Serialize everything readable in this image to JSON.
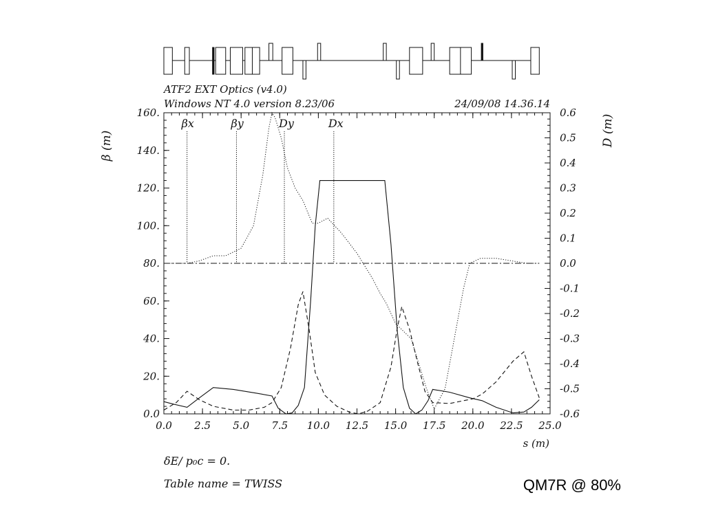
{
  "header": {
    "line1": "ATF2 EXT Optics (v4.0)",
    "line2": "Windows NT 4.0 version 8.23/06",
    "timestamp": "24/09/08  14.36.14"
  },
  "footer": {
    "delta_label": "δE/ p₀c  =  0.",
    "table_label": "Table name = TWISS"
  },
  "annotation": "QM7R @ 80%",
  "chart_data": {
    "type": "line",
    "xlabel": "s (m)",
    "ylabel": "β  (m)",
    "y2label": "D  (m)",
    "xlim": [
      0,
      25
    ],
    "ylim": [
      0,
      160
    ],
    "y2lim": [
      -0.6,
      0.6
    ],
    "x_ticks": [
      "0.0",
      "2.5",
      "5.0",
      "7.5",
      "10.0",
      "12.5",
      "15.0",
      "17.5",
      "20.0",
      "22.5",
      "25.0"
    ],
    "y_ticks": [
      "0.0",
      "20.",
      "40.",
      "60.",
      "80.",
      "100.",
      "120.",
      "140.",
      "160."
    ],
    "y2_ticks": [
      "-0.6",
      "-0.5",
      "-0.4",
      "-0.3",
      "-0.2",
      "-0.1",
      "0.0",
      "0.1",
      "0.2",
      "0.3",
      "0.4",
      "0.5",
      "0.6"
    ],
    "legend": [
      {
        "label": "βx",
        "x": 1.5
      },
      {
        "label": "βy",
        "x": 4.7
      },
      {
        "label": "Dy",
        "x": 7.8
      },
      {
        "label": "Dx",
        "x": 11.0
      }
    ],
    "series": [
      {
        "name": "βx",
        "axis": "left",
        "style": "solid",
        "x": [
          0.0,
          0.7,
          1.5,
          2.3,
          3.2,
          4.5,
          6.0,
          7.0,
          7.4,
          7.9,
          8.3,
          8.7,
          9.1,
          9.5,
          9.8,
          10.1,
          11.0,
          12.5,
          14.0,
          14.3,
          14.7,
          15.1,
          15.5,
          15.9,
          16.3,
          16.7,
          17.1,
          17.4,
          18.5,
          19.8,
          20.6,
          21.5,
          22.6,
          23.3,
          23.8,
          24.3
        ],
        "y": [
          6.5,
          5.0,
          3.5,
          8.5,
          14.0,
          13.0,
          11.0,
          9.5,
          3.0,
          0.0,
          0.5,
          4.5,
          14.0,
          60.0,
          100.0,
          124.0,
          124.0,
          124.0,
          124.0,
          124.0,
          90.0,
          45.0,
          14.0,
          3.0,
          0.0,
          2.0,
          7.0,
          13.0,
          11.5,
          8.5,
          7.0,
          3.5,
          0.5,
          1.0,
          3.5,
          7.5
        ]
      },
      {
        "name": "βy",
        "axis": "left",
        "style": "dashed",
        "x": [
          0.0,
          0.8,
          1.5,
          2.3,
          3.2,
          4.5,
          5.5,
          6.5,
          7.0,
          7.6,
          8.2,
          8.7,
          9.0,
          9.4,
          9.8,
          10.4,
          11.2,
          12.0,
          12.6,
          13.2,
          14.0,
          14.7,
          15.1,
          15.4,
          15.9,
          16.4,
          16.9,
          17.4,
          18.5,
          20.0,
          20.6,
          21.5,
          22.6,
          23.3,
          23.8,
          24.3
        ],
        "y": [
          2.0,
          6.0,
          12.0,
          7.5,
          4.0,
          2.0,
          2.0,
          3.5,
          6.0,
          14.0,
          35.0,
          58.0,
          65.0,
          45.0,
          22.0,
          10.0,
          4.0,
          1.0,
          0.0,
          1.5,
          6.0,
          25.0,
          45.0,
          57.0,
          45.0,
          28.0,
          12.0,
          6.0,
          5.5,
          8.0,
          10.5,
          17.0,
          28.0,
          33.0,
          20.0,
          8.5
        ]
      },
      {
        "name": "Dx",
        "axis": "right",
        "style": "dotted",
        "x": [
          0.0,
          1.5,
          2.3,
          3.2,
          4.0,
          5.0,
          5.8,
          6.4,
          6.8,
          7.0,
          7.2,
          7.6,
          8.0,
          8.5,
          9.0,
          9.6,
          10.0,
          10.6,
          11.5,
          12.5,
          13.5,
          14.0,
          14.4,
          15.0,
          15.5,
          16.0,
          16.5,
          17.0,
          17.5,
          18.2,
          18.8,
          19.4,
          19.8,
          20.5,
          21.5,
          22.5,
          23.5,
          24.3
        ],
        "y": [
          0.0,
          0.0,
          0.01,
          0.03,
          0.03,
          0.06,
          0.15,
          0.35,
          0.54,
          0.6,
          0.58,
          0.5,
          0.38,
          0.3,
          0.25,
          0.16,
          0.16,
          0.18,
          0.12,
          0.04,
          -0.06,
          -0.12,
          -0.16,
          -0.24,
          -0.27,
          -0.3,
          -0.4,
          -0.5,
          -0.58,
          -0.5,
          -0.3,
          -0.1,
          0.0,
          0.02,
          0.02,
          0.01,
          0.0,
          0.0
        ]
      },
      {
        "name": "Dy",
        "axis": "right",
        "style": "dashdot",
        "x": [
          0.0,
          24.3
        ],
        "y": [
          0.0,
          0.0
        ]
      }
    ]
  },
  "beamline": {
    "baseline_xlim": [
      0,
      24.3
    ],
    "elements": [
      {
        "type": "quad",
        "x0": 0.0,
        "x1": 0.55,
        "level": "full"
      },
      {
        "type": "quad",
        "x0": 1.35,
        "x1": 1.65,
        "level": "full"
      },
      {
        "type": "bend",
        "x0": 3.15,
        "x1": 3.25,
        "level": "full"
      },
      {
        "type": "quad",
        "x0": 3.35,
        "x1": 4.0,
        "level": "full"
      },
      {
        "type": "quad",
        "x0": 4.3,
        "x1": 5.1,
        "level": "full"
      },
      {
        "type": "quad",
        "x0": 5.25,
        "x1": 6.2,
        "level": "full"
      },
      {
        "type": "sext",
        "x0": 6.8,
        "x1": 7.05,
        "level": "up"
      },
      {
        "type": "quad",
        "x0": 7.65,
        "x1": 8.35,
        "level": "full"
      },
      {
        "type": "sext",
        "x0": 9.0,
        "x1": 9.2,
        "level": "down"
      },
      {
        "type": "sext",
        "x0": 9.95,
        "x1": 10.15,
        "level": "up"
      },
      {
        "type": "sext",
        "x0": 14.2,
        "x1": 14.4,
        "level": "up"
      },
      {
        "type": "sext",
        "x0": 15.05,
        "x1": 15.25,
        "level": "down"
      },
      {
        "type": "quad",
        "x0": 15.9,
        "x1": 16.75,
        "level": "full"
      },
      {
        "type": "sext",
        "x0": 17.3,
        "x1": 17.5,
        "level": "up"
      },
      {
        "type": "quad",
        "x0": 18.5,
        "x1": 19.9,
        "level": "full"
      },
      {
        "type": "bend",
        "x0": 20.55,
        "x1": 20.65,
        "level": "up"
      },
      {
        "type": "sext",
        "x0": 22.55,
        "x1": 22.75,
        "level": "down"
      },
      {
        "type": "quad",
        "x0": 23.75,
        "x1": 24.3,
        "level": "full"
      }
    ]
  }
}
